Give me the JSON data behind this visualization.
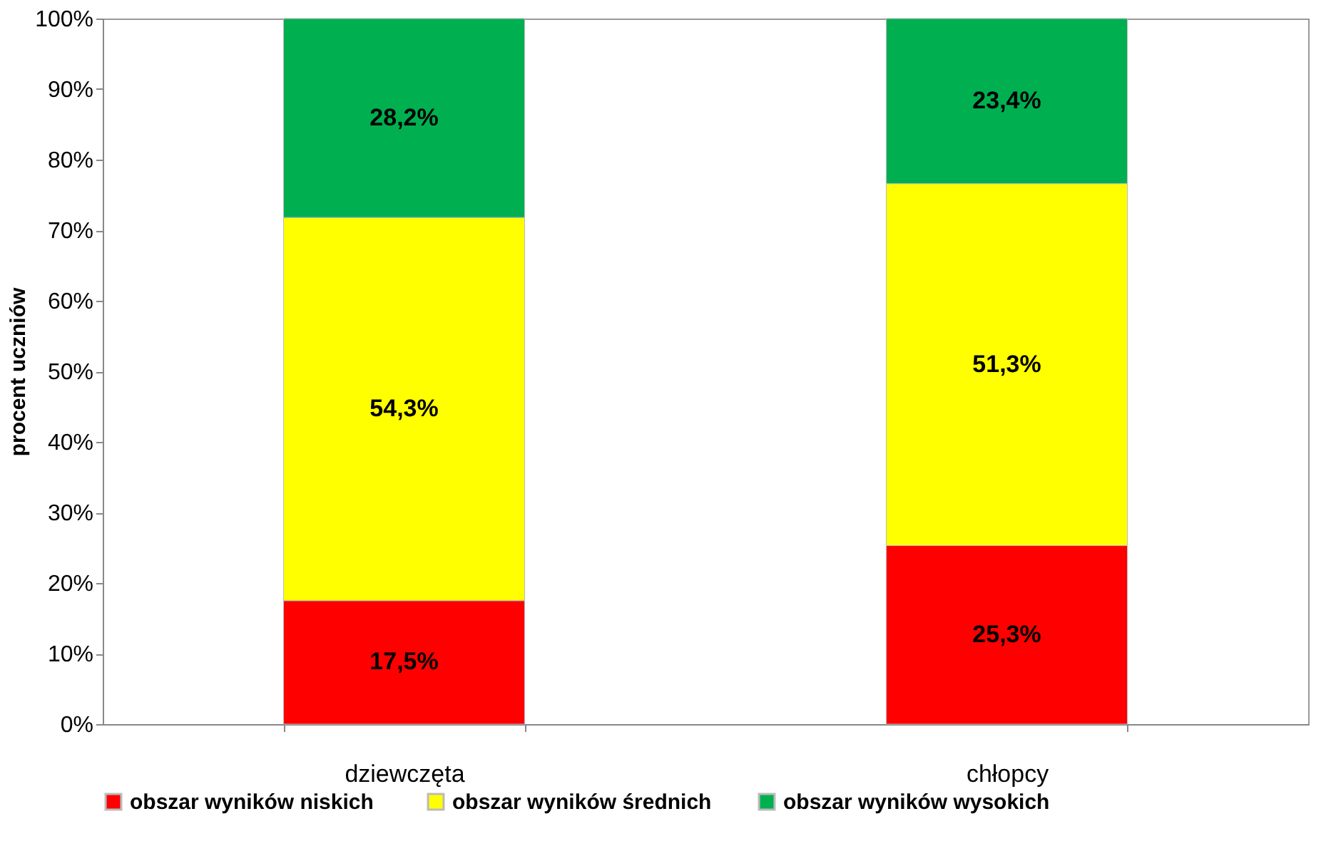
{
  "chart_data": {
    "type": "bar",
    "stacked": true,
    "ylabel": "procent  uczniów",
    "categories": [
      "dziewczęta",
      "chłopcy"
    ],
    "series": [
      {
        "name": "obszar  wyników niskich",
        "color": "#ff0000",
        "values": [
          17.5,
          25.3
        ],
        "value_labels": [
          "17,5%",
          "25,3%"
        ]
      },
      {
        "name": "obszar wyników średnich",
        "color": "#ffff00",
        "values": [
          54.3,
          51.3
        ],
        "value_labels": [
          "54,3%",
          "51,3%"
        ]
      },
      {
        "name": "obszar wyników wysokich",
        "color": "#00b050",
        "values": [
          28.2,
          23.4
        ],
        "value_labels": [
          "28,2%",
          "23,4%"
        ]
      }
    ],
    "ylim": [
      0,
      100
    ],
    "yticks": [
      {
        "value": 0,
        "label": "0%"
      },
      {
        "value": 10,
        "label": "10%"
      },
      {
        "value": 20,
        "label": "20%"
      },
      {
        "value": 30,
        "label": "30%"
      },
      {
        "value": 40,
        "label": "40%"
      },
      {
        "value": 50,
        "label": "50%"
      },
      {
        "value": 60,
        "label": "60%"
      },
      {
        "value": 70,
        "label": "70%"
      },
      {
        "value": 80,
        "label": "80%"
      },
      {
        "value": 90,
        "label": "90%"
      },
      {
        "value": 100,
        "label": "100%"
      }
    ],
    "legend": "bottom"
  }
}
